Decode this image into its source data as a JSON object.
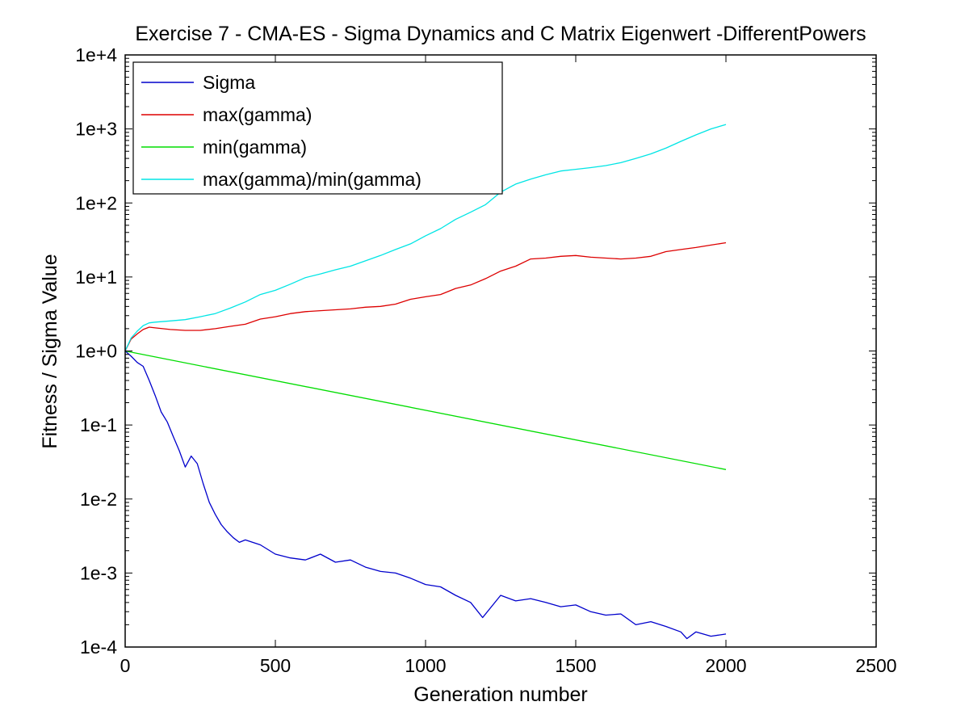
{
  "chart_data": {
    "type": "line",
    "title": "Exercise 7 - CMA-ES - Sigma Dynamics and C Matrix Eigenwert -DifferentPowers",
    "xlabel": "Generation number",
    "ylabel": "Fitness / Sigma Value",
    "xlim": [
      0,
      2500
    ],
    "ylim": [
      0.0001,
      10000
    ],
    "yscale": "log",
    "grid": false,
    "legend_position": "top-left",
    "x_ticks": [
      {
        "value": 0,
        "label": "0"
      },
      {
        "value": 500,
        "label": "500"
      },
      {
        "value": 1000,
        "label": "1000"
      },
      {
        "value": 1500,
        "label": "1500"
      },
      {
        "value": 2000,
        "label": "2000"
      },
      {
        "value": 2500,
        "label": "2500"
      }
    ],
    "y_ticks": [
      {
        "value": 0.0001,
        "label": "1e-4"
      },
      {
        "value": 0.001,
        "label": "1e-3"
      },
      {
        "value": 0.01,
        "label": "1e-2"
      },
      {
        "value": 0.1,
        "label": "1e-1"
      },
      {
        "value": 1,
        "label": "1e+0"
      },
      {
        "value": 10,
        "label": "1e+1"
      },
      {
        "value": 100,
        "label": "1e+2"
      },
      {
        "value": 1000,
        "label": "1e+3"
      },
      {
        "value": 10000,
        "label": "1e+4"
      }
    ],
    "series": [
      {
        "name": "Sigma",
        "color": "#0000cc",
        "x": [
          0,
          20,
          40,
          60,
          80,
          100,
          120,
          140,
          160,
          180,
          200,
          220,
          240,
          260,
          280,
          300,
          320,
          340,
          360,
          380,
          400,
          450,
          500,
          550,
          600,
          650,
          700,
          750,
          800,
          850,
          900,
          950,
          1000,
          1050,
          1100,
          1150,
          1190,
          1250,
          1300,
          1350,
          1400,
          1450,
          1500,
          1550,
          1600,
          1650,
          1700,
          1750,
          1800,
          1850,
          1870,
          1900,
          1950,
          2000
        ],
        "y": [
          1.0,
          0.85,
          0.7,
          0.62,
          0.4,
          0.25,
          0.15,
          0.11,
          0.07,
          0.045,
          0.027,
          0.038,
          0.03,
          0.016,
          0.009,
          0.0062,
          0.0045,
          0.0036,
          0.003,
          0.0026,
          0.0028,
          0.0024,
          0.0018,
          0.0016,
          0.0015,
          0.0018,
          0.0014,
          0.0015,
          0.0012,
          0.00105,
          0.001,
          0.00085,
          0.0007,
          0.00065,
          0.0005,
          0.0004,
          0.00025,
          0.0005,
          0.00042,
          0.00045,
          0.0004,
          0.00035,
          0.00037,
          0.0003,
          0.00027,
          0.00028,
          0.0002,
          0.00022,
          0.00019,
          0.00016,
          0.00013,
          0.00016,
          0.00014,
          0.00015
        ]
      },
      {
        "name": "max(gamma)",
        "color": "#dd0000",
        "x": [
          0,
          20,
          40,
          60,
          80,
          100,
          150,
          200,
          250,
          300,
          350,
          400,
          450,
          500,
          550,
          600,
          650,
          700,
          750,
          800,
          850,
          900,
          950,
          1000,
          1050,
          1100,
          1150,
          1200,
          1250,
          1300,
          1350,
          1400,
          1450,
          1500,
          1550,
          1600,
          1650,
          1700,
          1750,
          1800,
          1850,
          1900,
          1950,
          2000
        ],
        "y": [
          1.0,
          1.45,
          1.7,
          1.95,
          2.1,
          2.05,
          1.95,
          1.9,
          1.9,
          2.0,
          2.15,
          2.3,
          2.7,
          2.9,
          3.2,
          3.4,
          3.5,
          3.6,
          3.7,
          3.9,
          4.0,
          4.3,
          5.0,
          5.4,
          5.8,
          7.0,
          7.8,
          9.5,
          12.0,
          14.0,
          17.5,
          18.0,
          19.0,
          19.5,
          18.5,
          18.0,
          17.5,
          18.0,
          19.0,
          22.0,
          23.5,
          25.0,
          27.0,
          29.0
        ]
      },
      {
        "name": "min(gamma)",
        "color": "#00dd00",
        "x": [
          0,
          2000
        ],
        "y": [
          1.0,
          0.025
        ]
      },
      {
        "name": "max(gamma)/min(gamma)",
        "color": "#00e5e5",
        "x": [
          0,
          20,
          40,
          60,
          80,
          100,
          150,
          200,
          250,
          300,
          350,
          400,
          450,
          500,
          550,
          600,
          650,
          700,
          750,
          800,
          850,
          900,
          950,
          1000,
          1050,
          1100,
          1150,
          1200,
          1250,
          1300,
          1350,
          1400,
          1450,
          1500,
          1550,
          1600,
          1650,
          1700,
          1750,
          1800,
          1850,
          1900,
          1950,
          2000
        ],
        "y": [
          1.0,
          1.5,
          1.85,
          2.2,
          2.4,
          2.45,
          2.55,
          2.65,
          2.9,
          3.2,
          3.8,
          4.6,
          5.8,
          6.6,
          8.0,
          9.8,
          11.0,
          12.5,
          14.0,
          16.5,
          19.5,
          23.5,
          28.0,
          36.0,
          45.0,
          60.0,
          75.0,
          95.0,
          140.0,
          180.0,
          210.0,
          240.0,
          270.0,
          285.0,
          300.0,
          320.0,
          350.0,
          400.0,
          460.0,
          550.0,
          680.0,
          830.0,
          1000.0,
          1150.0
        ]
      }
    ]
  }
}
